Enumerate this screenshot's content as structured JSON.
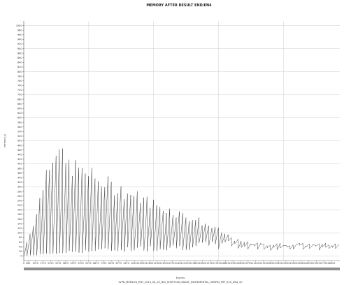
{
  "chart_data": {
    "type": "line",
    "title": "MEMORY AFTER RESULT END/EN4",
    "xlabel": "Events",
    "ylabel": "memory_A",
    "caption": "LVPD_MEMLOG_ENT_2015_04_22_BIG_SHUFFLED_RAGEF_INCREMENTAL_UNSPIN_FRP_K10_EN4_10",
    "xlim": [
      0,
      29200
    ],
    "ylim": [
      -20,
      1020
    ],
    "x_ticks": [
      "0",
      "400",
      "1075",
      "1775",
      "2475",
      "3175",
      "3875",
      "4575",
      "5275",
      "5975",
      "6675",
      "7375",
      "8075",
      "8775",
      "9475",
      "10225",
      "10925",
      "11625",
      "12325",
      "13025",
      "13725",
      "14425",
      "15125",
      "15825",
      "16525",
      "17225",
      "17925",
      "18625",
      "19325",
      "20025",
      "20725",
      "21425",
      "22125",
      "22825",
      "23525",
      "24225",
      "24925",
      "25625",
      "26325",
      "27025",
      "27725",
      "28425"
    ],
    "y_ticks": [
      "1000",
      "980",
      "960",
      "940",
      "920",
      "900",
      "880",
      "860",
      "840",
      "820",
      "800",
      "780",
      "760",
      "740",
      "720",
      "700",
      "680",
      "660",
      "640",
      "620",
      "600",
      "580",
      "560",
      "540",
      "520",
      "500",
      "480",
      "460",
      "440",
      "420",
      "400",
      "380",
      "360",
      "340",
      "320",
      "300",
      "280",
      "260",
      "240",
      "220",
      "200",
      "180",
      "160",
      "140",
      "120",
      "100",
      "80",
      "60",
      "40",
      "20",
      "0"
    ],
    "series": [
      {
        "pattern": "sawtooth",
        "period_events": 300,
        "x_start": 0,
        "x_end": 29000,
        "baseline": 20,
        "peak_envelope": {
          "x": [
            0,
            1000,
            2000,
            2700,
            3500,
            4500,
            5500,
            6500,
            7500,
            8500,
            9500,
            10500,
            11500,
            12500,
            13500,
            14500,
            15500,
            16500,
            17500,
            18500,
            19500,
            20500,
            22000,
            24000,
            26000,
            28000,
            29000
          ],
          "y": [
            60,
            200,
            410,
            470,
            400,
            380,
            360,
            330,
            310,
            290,
            270,
            250,
            230,
            210,
            195,
            175,
            160,
            140,
            115,
            90,
            65,
            55,
            50,
            50,
            50,
            50,
            50
          ]
        },
        "trough_envelope": {
          "x": [
            0,
            5000,
            10000,
            15000,
            19000,
            20500,
            29000
          ],
          "y": [
            0,
            20,
            30,
            40,
            50,
            40,
            35
          ]
        }
      }
    ]
  }
}
